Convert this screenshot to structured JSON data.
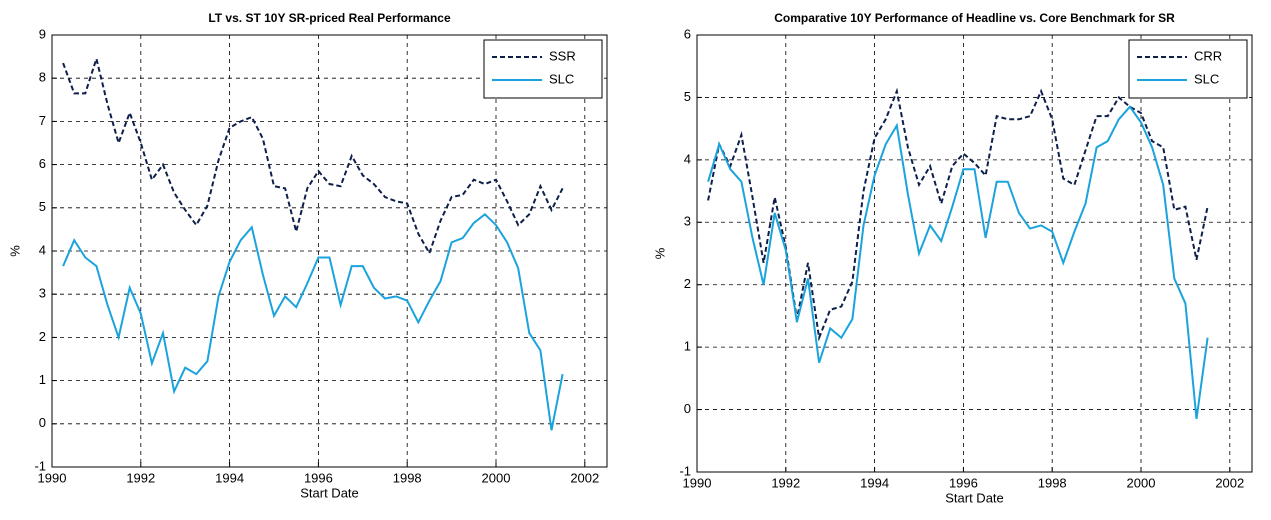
{
  "chart_data": [
    {
      "type": "line",
      "title": "LT vs. ST 10Y SR-priced Real Performance",
      "x_label": "Start Date",
      "y_label": "%",
      "x": [
        1990.25,
        1990.5,
        1990.75,
        1991,
        1991.25,
        1991.5,
        1991.75,
        1992,
        1992.25,
        1992.5,
        1992.75,
        1993,
        1993.25,
        1993.5,
        1993.75,
        1994,
        1994.25,
        1994.5,
        1994.75,
        1995,
        1995.25,
        1995.5,
        1995.75,
        1996,
        1996.25,
        1996.5,
        1996.75,
        1997,
        1997.25,
        1997.5,
        1997.75,
        1998,
        1998.25,
        1998.5,
        1998.75,
        1999,
        1999.25,
        1999.5,
        1999.75,
        2000,
        2000.25,
        2000.5,
        2000.75,
        2001,
        2001.25,
        2001.5
      ],
      "series": [
        {
          "name": "SSR",
          "color": "#0d1f4a",
          "dash": true,
          "values": [
            8.35,
            7.65,
            7.65,
            8.45,
            7.4,
            6.5,
            7.2,
            6.5,
            5.65,
            6.0,
            5.35,
            4.95,
            4.6,
            5.05,
            6.1,
            6.85,
            7.0,
            7.1,
            6.6,
            5.5,
            5.45,
            4.45,
            5.45,
            5.85,
            5.55,
            5.5,
            6.2,
            5.75,
            5.55,
            5.25,
            5.15,
            5.1,
            4.4,
            3.95,
            4.7,
            5.25,
            5.3,
            5.65,
            5.55,
            5.65,
            5.15,
            4.6,
            4.85,
            5.5,
            4.95,
            5.45
          ]
        },
        {
          "name": "SLC",
          "color": "#1ba3dc",
          "dash": false,
          "values": [
            3.65,
            4.25,
            3.85,
            3.65,
            2.75,
            2.0,
            3.15,
            2.55,
            1.4,
            2.1,
            0.75,
            1.3,
            1.15,
            1.45,
            2.95,
            3.75,
            4.25,
            4.55,
            3.45,
            2.5,
            2.95,
            2.7,
            3.25,
            3.85,
            3.85,
            2.75,
            3.65,
            3.65,
            3.15,
            2.9,
            2.95,
            2.85,
            2.35,
            2.85,
            3.3,
            4.2,
            4.3,
            4.65,
            4.85,
            4.6,
            4.2,
            3.6,
            2.1,
            1.7,
            -0.15,
            1.15
          ]
        }
      ],
      "xlim": [
        1990,
        2002.5
      ],
      "xticks": [
        1990,
        1992,
        1994,
        1996,
        1998,
        2000,
        2002
      ],
      "ylim": [
        -1,
        9
      ],
      "yticks": [
        -1,
        0,
        1,
        2,
        3,
        4,
        5,
        6,
        7,
        8,
        9
      ],
      "grid": true,
      "legend": "upper right"
    },
    {
      "type": "line",
      "title": "Comparative 10Y Performance of Headline vs. Core Benchmark for SR",
      "x_label": "Start Date",
      "y_label": "%",
      "x": [
        1990.25,
        1990.5,
        1990.75,
        1991,
        1991.25,
        1991.5,
        1991.75,
        1992,
        1992.25,
        1992.5,
        1992.75,
        1993,
        1993.25,
        1993.5,
        1993.75,
        1994,
        1994.25,
        1994.5,
        1994.75,
        1995,
        1995.25,
        1995.5,
        1995.75,
        1996,
        1996.25,
        1996.5,
        1996.75,
        1997,
        1997.25,
        1997.5,
        1997.75,
        1998,
        1998.25,
        1998.5,
        1998.75,
        1999,
        1999.25,
        1999.5,
        1999.75,
        2000,
        2000.25,
        2000.5,
        2000.75,
        2001,
        2001.25,
        2001.5
      ],
      "series": [
        {
          "name": "CRR",
          "color": "#0d1f4a",
          "dash": true,
          "values": [
            3.35,
            4.25,
            3.9,
            4.4,
            3.4,
            2.35,
            3.4,
            2.6,
            1.45,
            2.35,
            1.15,
            1.6,
            1.65,
            2.05,
            3.5,
            4.35,
            4.65,
            5.1,
            4.2,
            3.6,
            3.9,
            3.3,
            3.9,
            4.1,
            3.95,
            3.75,
            4.7,
            4.65,
            4.65,
            4.7,
            5.1,
            4.65,
            3.7,
            3.6,
            4.15,
            4.7,
            4.7,
            5.0,
            4.85,
            4.75,
            4.3,
            4.2,
            3.2,
            3.25,
            2.4,
            3.25
          ]
        },
        {
          "name": "SLC",
          "color": "#1ba3dc",
          "dash": false,
          "values": [
            3.65,
            4.25,
            3.85,
            3.65,
            2.75,
            2.0,
            3.15,
            2.55,
            1.4,
            2.1,
            0.75,
            1.3,
            1.15,
            1.45,
            2.95,
            3.75,
            4.25,
            4.55,
            3.45,
            2.5,
            2.95,
            2.7,
            3.25,
            3.85,
            3.85,
            2.75,
            3.65,
            3.65,
            3.15,
            2.9,
            2.95,
            2.85,
            2.35,
            2.85,
            3.3,
            4.2,
            4.3,
            4.65,
            4.85,
            4.6,
            4.2,
            3.6,
            2.1,
            1.7,
            -0.15,
            1.15
          ]
        }
      ],
      "xlim": [
        1990,
        2002.5
      ],
      "xticks": [
        1990,
        1992,
        1994,
        1996,
        1998,
        2000,
        2002
      ],
      "ylim": [
        -1,
        6
      ],
      "yticks": [
        -1,
        0,
        1,
        2,
        3,
        4,
        5,
        6
      ],
      "grid": true,
      "legend": "upper right"
    }
  ]
}
